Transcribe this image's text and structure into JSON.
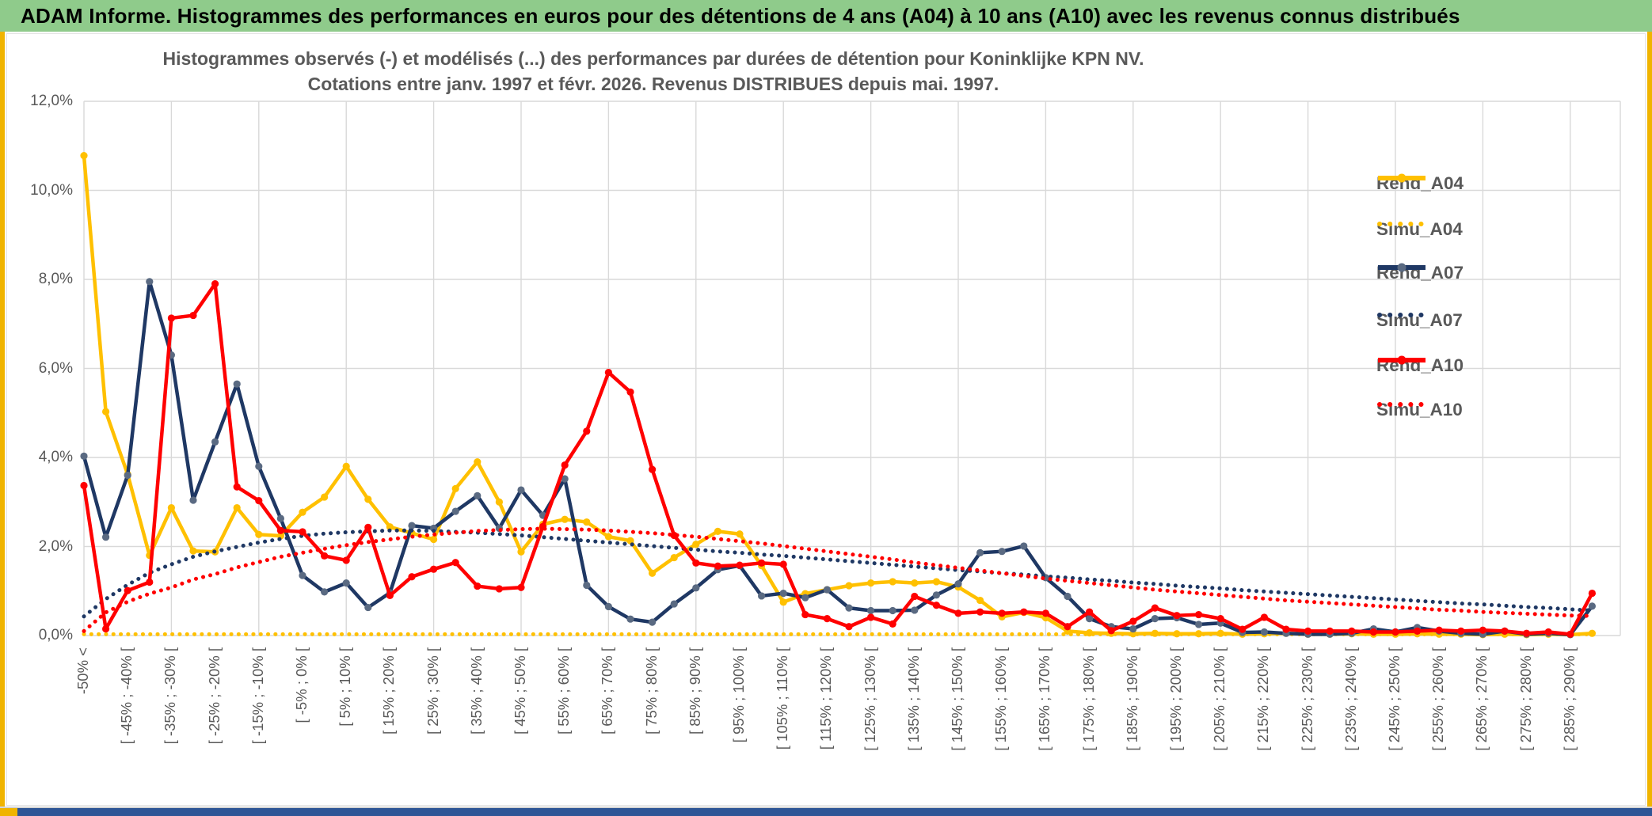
{
  "window": {
    "title": "ADAM Informe. Histogrammes des performances en euros pour des détentions de 4 ans (A04) à 10 ans (A10) avec les revenus connus distribués"
  },
  "colors": {
    "titlebar_green": "#8FCB8B",
    "accent_amber": "#F0B400",
    "footer_blue": "#2E5596",
    "grid_gray": "#D9D9D9",
    "text_gray": "#595959",
    "series_gold": "#FFC000",
    "series_navy": "#1F3864",
    "series_navy_marker": "#5A6A82",
    "series_red": "#FF0000"
  },
  "chart_data": {
    "type": "line",
    "title_lines": [
      "Histogrammes observés (-) et modélisés (...) des performances par durées de détention pour Koninklijke KPN NV.",
      "Cotations entre janv. 1997 et févr. 2026. Revenus DISTRIBUES depuis mai. 1997."
    ],
    "ylabel": "",
    "xlabel": "",
    "ylim": [
      0,
      12
    ],
    "grid": true,
    "legend_position": "right-upper",
    "y_ticks": [
      "12,0%",
      "10,0%",
      "8,0%",
      "6,0%",
      "4,0%",
      "2,0%",
      "0,0%"
    ],
    "n_points": 70,
    "x_label_step": 2,
    "x_labels": [
      "-50% <",
      "[ -45% ; -40% [",
      "[ -35% ; -30% [",
      "[ -25% ; -20% [",
      "[ -15% ; -10% [",
      "[ -5% ; 0% [",
      "[ 5% ; 10% [",
      "[ 15% ; 20% [",
      "[ 25% ; 30% [",
      "[ 35% ; 40% [",
      "[ 45% ; 50% [",
      "[ 55% ; 60% [",
      "[ 65% ; 70% [",
      "[ 75% ; 80% [",
      "[ 85% ; 90% [",
      "[ 95% ; 100% [",
      "[ 105% ; 110% [",
      "[ 115% ; 120% [",
      "[ 125% ; 130% [",
      "[ 135% ; 140% [",
      "[ 145% ; 150% [",
      "[ 155% ; 160% [",
      "[ 165% ; 170% [",
      "[ 175% ; 180% [",
      "[ 185% ; 190% [",
      "[ 195% ; 200% [",
      "[ 205% ; 210% [",
      "[ 215% ; 220% [",
      "[ 225% ; 230% [",
      "[ 235% ; 240% [",
      "[ 245% ; 250% [",
      "[ 255% ; 260% [",
      "[ 265% ; 270% [",
      "[ 275% ; 280% [",
      "[ 285% ; 290% ["
    ],
    "series": [
      {
        "name": "Rend_A04",
        "style": "solid",
        "color": "#FFC000",
        "marker_color": "#FFC000",
        "values": [
          10.78,
          5.03,
          3.62,
          1.8,
          2.87,
          1.9,
          1.88,
          2.87,
          2.27,
          2.24,
          2.77,
          3.11,
          3.8,
          3.06,
          2.44,
          2.3,
          2.16,
          3.3,
          3.9,
          3.0,
          1.88,
          2.5,
          2.61,
          2.55,
          2.22,
          2.13,
          1.4,
          1.75,
          2.05,
          2.34,
          2.28,
          1.57,
          0.75,
          0.94,
          1.03,
          1.12,
          1.18,
          1.21,
          1.18,
          1.21,
          1.09,
          0.79,
          0.42,
          0.52,
          0.4,
          0.1,
          0.06,
          0.05,
          0.04,
          0.05,
          0.04,
          0.04,
          0.05,
          0.03,
          0.04,
          0.05,
          0.03,
          0.03,
          0.04,
          0.03,
          0.03,
          0.04,
          0.03,
          0.03,
          0.02,
          0.03,
          0.02,
          0.03,
          0.02,
          0.05
        ]
      },
      {
        "name": "Simu_A04",
        "style": "dotted",
        "color": "#FFC000",
        "values": [
          0.03,
          0.03,
          0.03,
          0.03,
          0.03,
          0.03,
          0.03,
          0.03,
          0.03,
          0.03,
          0.03,
          0.03,
          0.03,
          0.03,
          0.03,
          0.03,
          0.03,
          0.03,
          0.03,
          0.03,
          0.03,
          0.03,
          0.03,
          0.03,
          0.03,
          0.03,
          0.03,
          0.03,
          0.03,
          0.03,
          0.03,
          0.03,
          0.03,
          0.03,
          0.03,
          0.03,
          0.03,
          0.03,
          0.03,
          0.03,
          0.03,
          0.03,
          0.03,
          0.03,
          0.03,
          0.03,
          0.03,
          0.03,
          0.03,
          0.03,
          0.03,
          0.03,
          0.03,
          0.03,
          0.03,
          0.03,
          0.03,
          0.03,
          0.03,
          0.03,
          0.03,
          0.03,
          0.03,
          0.03,
          0.03,
          0.03,
          0.03,
          0.03,
          0.03,
          0.03
        ]
      },
      {
        "name": "Rend_A07",
        "style": "solid",
        "color": "#1F3864",
        "marker_color": "#5A6A82",
        "values": [
          4.03,
          2.21,
          3.6,
          7.95,
          6.3,
          3.04,
          4.35,
          5.65,
          3.8,
          2.63,
          1.35,
          0.98,
          1.18,
          0.63,
          0.96,
          2.47,
          2.41,
          2.79,
          3.14,
          2.41,
          3.27,
          2.7,
          3.52,
          1.13,
          0.65,
          0.37,
          0.3,
          0.71,
          1.07,
          1.48,
          1.57,
          0.89,
          0.95,
          0.85,
          1.03,
          0.62,
          0.56,
          0.56,
          0.57,
          0.91,
          1.16,
          1.86,
          1.89,
          2.01,
          1.3,
          0.88,
          0.38,
          0.2,
          0.15,
          0.38,
          0.4,
          0.25,
          0.28,
          0.07,
          0.08,
          0.05,
          0.03,
          0.03,
          0.05,
          0.15,
          0.08,
          0.18,
          0.1,
          0.05,
          0.03,
          0.1,
          0.03,
          0.05,
          0.02,
          0.66
        ]
      },
      {
        "name": "Simu_A07",
        "style": "dotted",
        "color": "#1F3864",
        "values": [
          0.43,
          0.82,
          1.14,
          1.41,
          1.6,
          1.77,
          1.89,
          1.99,
          2.09,
          2.17,
          2.24,
          2.29,
          2.32,
          2.34,
          2.36,
          2.36,
          2.35,
          2.33,
          2.31,
          2.28,
          2.25,
          2.21,
          2.17,
          2.13,
          2.09,
          2.05,
          2.01,
          1.97,
          1.93,
          1.89,
          1.86,
          1.82,
          1.79,
          1.75,
          1.71,
          1.67,
          1.63,
          1.59,
          1.55,
          1.51,
          1.47,
          1.44,
          1.4,
          1.37,
          1.33,
          1.3,
          1.26,
          1.23,
          1.19,
          1.16,
          1.12,
          1.09,
          1.06,
          1.02,
          0.99,
          0.96,
          0.93,
          0.9,
          0.87,
          0.84,
          0.81,
          0.78,
          0.75,
          0.72,
          0.7,
          0.67,
          0.64,
          0.62,
          0.59,
          0.56
        ]
      },
      {
        "name": "Rend_A10",
        "style": "solid",
        "color": "#FF0000",
        "marker_color": "#FF0000",
        "values": [
          3.37,
          0.15,
          1.01,
          1.2,
          7.13,
          7.19,
          7.9,
          3.34,
          3.03,
          2.36,
          2.33,
          1.79,
          1.69,
          2.43,
          0.9,
          1.32,
          1.49,
          1.64,
          1.11,
          1.05,
          1.08,
          2.45,
          3.83,
          4.59,
          5.91,
          5.47,
          3.73,
          2.25,
          1.63,
          1.56,
          1.58,
          1.63,
          1.6,
          0.47,
          0.38,
          0.2,
          0.41,
          0.26,
          0.88,
          0.68,
          0.5,
          0.53,
          0.5,
          0.53,
          0.5,
          0.2,
          0.53,
          0.11,
          0.32,
          0.62,
          0.45,
          0.47,
          0.38,
          0.14,
          0.41,
          0.14,
          0.1,
          0.1,
          0.1,
          0.08,
          0.08,
          0.1,
          0.12,
          0.1,
          0.12,
          0.1,
          0.05,
          0.08,
          0.03,
          0.95
        ]
      },
      {
        "name": "Simu_A10",
        "style": "dotted",
        "color": "#FF0000",
        "values": [
          0.1,
          0.52,
          0.76,
          0.94,
          1.08,
          1.26,
          1.38,
          1.53,
          1.65,
          1.77,
          1.86,
          1.95,
          2.03,
          2.1,
          2.16,
          2.22,
          2.27,
          2.31,
          2.35,
          2.37,
          2.39,
          2.4,
          2.39,
          2.38,
          2.36,
          2.33,
          2.3,
          2.26,
          2.22,
          2.17,
          2.12,
          2.07,
          2.01,
          1.95,
          1.89,
          1.83,
          1.77,
          1.71,
          1.64,
          1.58,
          1.52,
          1.46,
          1.4,
          1.34,
          1.28,
          1.23,
          1.18,
          1.13,
          1.08,
          1.03,
          0.99,
          0.95,
          0.91,
          0.87,
          0.83,
          0.79,
          0.76,
          0.73,
          0.7,
          0.67,
          0.64,
          0.61,
          0.58,
          0.56,
          0.53,
          0.51,
          0.49,
          0.47,
          0.45,
          0.44
        ]
      }
    ]
  }
}
